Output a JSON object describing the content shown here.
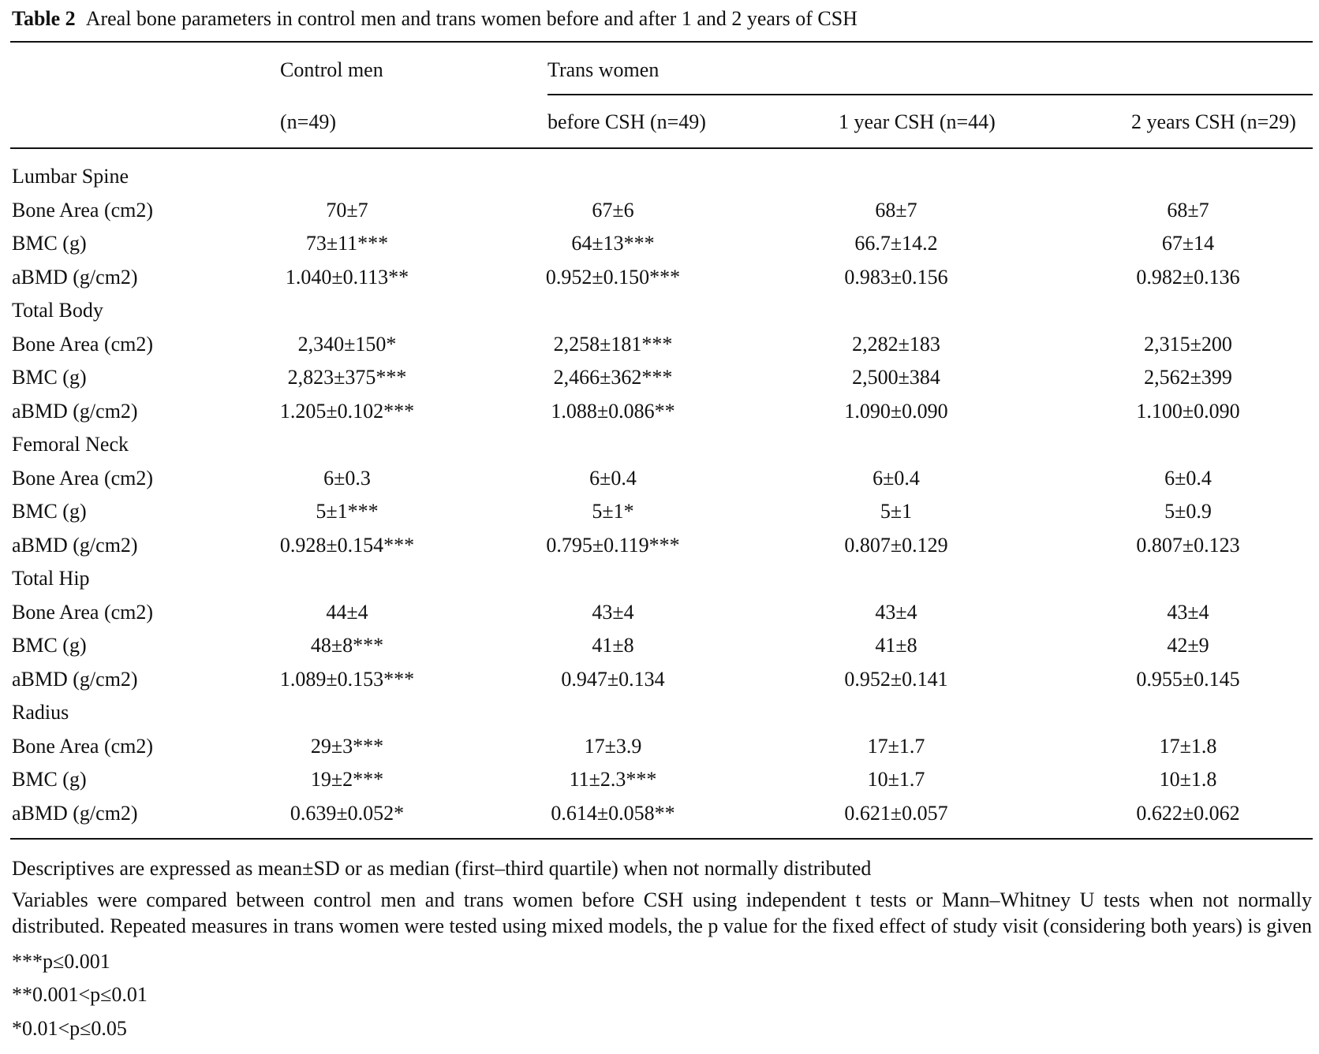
{
  "caption": {
    "label": "Table 2",
    "text": "Areal bone parameters in control men and trans women before and after 1 and 2 years of CSH"
  },
  "header": {
    "group1": "Control men",
    "group2": "Trans women",
    "columns": [
      "(n=49)",
      "before CSH (n=49)",
      "1 year CSH (n=44)",
      "2 years CSH (n=29)"
    ]
  },
  "sections": [
    {
      "title": "Lumbar Spine",
      "rows": [
        {
          "label": "Bone Area (cm2)",
          "values": [
            "70±7",
            "67±6",
            "68±7",
            "68±7"
          ]
        },
        {
          "label": "BMC (g)",
          "values": [
            "73±11***",
            "64±13***",
            "66.7±14.2",
            "67±14"
          ]
        },
        {
          "label": "aBMD (g/cm2)",
          "values": [
            "1.040±0.113**",
            "0.952±0.150***",
            "0.983±0.156",
            "0.982±0.136"
          ]
        }
      ]
    },
    {
      "title": "Total Body",
      "rows": [
        {
          "label": "Bone Area (cm2)",
          "values": [
            "2,340±150*",
            "2,258±181***",
            "2,282±183",
            "2,315±200"
          ]
        },
        {
          "label": "BMC (g)",
          "values": [
            "2,823±375***",
            "2,466±362***",
            "2,500±384",
            "2,562±399"
          ]
        },
        {
          "label": "aBMD (g/cm2)",
          "values": [
            "1.205±0.102***",
            "1.088±0.086**",
            "1.090±0.090",
            "1.100±0.090"
          ]
        }
      ]
    },
    {
      "title": "Femoral Neck",
      "rows": [
        {
          "label": "Bone Area (cm2)",
          "values": [
            "6±0.3",
            "6±0.4",
            "6±0.4",
            "6±0.4"
          ]
        },
        {
          "label": "BMC (g)",
          "values": [
            "5±1***",
            "5±1*",
            "5±1",
            "5±0.9"
          ]
        },
        {
          "label": "aBMD (g/cm2)",
          "values": [
            "0.928±0.154***",
            "0.795±0.119***",
            "0.807±0.129",
            "0.807±0.123"
          ]
        }
      ]
    },
    {
      "title": "Total Hip",
      "rows": [
        {
          "label": "Bone Area (cm2)",
          "values": [
            "44±4",
            "43±4",
            "43±4",
            "43±4"
          ]
        },
        {
          "label": "BMC (g)",
          "values": [
            "48±8***",
            "41±8",
            "41±8",
            "42±9"
          ]
        },
        {
          "label": "aBMD (g/cm2)",
          "values": [
            "1.089±0.153***",
            "0.947±0.134",
            "0.952±0.141",
            "0.955±0.145"
          ]
        }
      ]
    },
    {
      "title": "Radius",
      "rows": [
        {
          "label": "Bone Area (cm2)",
          "values": [
            "29±3***",
            "17±3.9",
            "17±1.7",
            "17±1.8"
          ]
        },
        {
          "label": "BMC (g)",
          "values": [
            "19±2***",
            "11±2.3***",
            "10±1.7",
            "10±1.8"
          ]
        },
        {
          "label": "aBMD (g/cm2)",
          "values": [
            "0.639±0.052*",
            "0.614±0.058**",
            "0.621±0.057",
            "0.622±0.062"
          ]
        }
      ]
    }
  ],
  "footnotes": [
    "Descriptives are expressed as mean±SD or as median (first–third quartile) when not normally distributed",
    "Variables were compared between control men and trans women before CSH using independent t tests or Mann–Whitney U tests when not normally distributed. Repeated measures in trans women were tested using mixed models, the p value for the fixed effect of study visit (considering both years) is given",
    "***p≤0.001",
    "**0.001<p≤0.01",
    "*0.01<p≤0.05"
  ]
}
